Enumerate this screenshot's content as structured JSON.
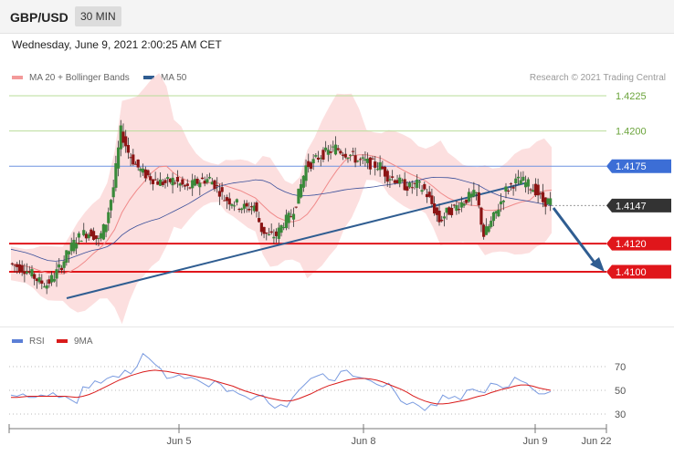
{
  "header": {
    "symbol": "GBP/USD",
    "timeframe": "30 MIN"
  },
  "timestamp": "Wednesday, June 9, 2021 2:00:25 AM CET",
  "credit": "Research © 2021 Trading Central",
  "legend": [
    {
      "label": "MA 20 + Bollinger Bands",
      "color": "#f39a9a"
    },
    {
      "label": "MA 50",
      "color": "#2f5d91"
    }
  ],
  "rsi_legend": [
    {
      "label": "RSI",
      "color": "#5b7fd6"
    },
    {
      "label": "9MA",
      "color": "#d91b1b"
    }
  ],
  "colors": {
    "resistance_green": "#8bc34a",
    "level_blue": "#3c6ed6",
    "support_red": "#e0161b",
    "current_dark": "#333333",
    "trend_navy": "#2f5d91"
  },
  "chart_data": [
    {
      "type": "line",
      "title": "",
      "ylim": [
        1.408,
        1.4235
      ],
      "x_ticks": [
        "Jun 5",
        "Jun 8",
        "Jun 9",
        "Jun 22"
      ],
      "levels": [
        {
          "value": 1.4225,
          "label": "1.4225",
          "kind": "resistance-green"
        },
        {
          "value": 1.42,
          "label": "1.4200",
          "kind": "resistance-green"
        },
        {
          "value": 1.4175,
          "label": "1.4175",
          "kind": "resistance-blue"
        },
        {
          "value": 1.4147,
          "label": "1.4147",
          "kind": "current"
        },
        {
          "value": 1.412,
          "label": "1.4120",
          "kind": "support-red"
        },
        {
          "value": 1.41,
          "label": "1.4100",
          "kind": "support-red"
        }
      ],
      "series": [
        {
          "name": "MA 20 + Bollinger Bands",
          "type": "line"
        },
        {
          "name": "MA 50",
          "type": "line"
        }
      ],
      "price_path": [
        1.4106,
        1.4104,
        1.4102,
        1.4098,
        1.4093,
        1.4091,
        1.4097,
        1.4105,
        1.4115,
        1.4123,
        1.4127,
        1.4128,
        1.4122,
        1.4135,
        1.416,
        1.42,
        1.4185,
        1.4176,
        1.417,
        1.4167,
        1.4164,
        1.4163,
        1.4165,
        1.4162,
        1.4159,
        1.4163,
        1.4165,
        1.4166,
        1.416,
        1.4152,
        1.415,
        1.4147,
        1.4145,
        1.4147,
        1.413,
        1.4125,
        1.4126,
        1.4135,
        1.414,
        1.4155,
        1.4175,
        1.4178,
        1.4183,
        1.4185,
        1.4188,
        1.4185,
        1.4183,
        1.4179,
        1.4178,
        1.4176,
        1.4175,
        1.4168,
        1.4166,
        1.4162,
        1.416,
        1.4162,
        1.4158,
        1.4148,
        1.4136,
        1.4142,
        1.4145,
        1.4149,
        1.4153,
        1.4155,
        1.4126,
        1.4135,
        1.4146,
        1.4158,
        1.4163,
        1.4165,
        1.4162,
        1.4158,
        1.415,
        1.415
      ],
      "trendlines": [
        {
          "from": [
            "start",
            1.4093
          ],
          "to": [
            "Jun 9",
            1.4164
          ],
          "label": ""
        }
      ],
      "forecast": {
        "from": 1.415,
        "to": 1.41,
        "label": ""
      }
    },
    {
      "type": "line",
      "title": "",
      "ylim": [
        20,
        80
      ],
      "y_ticks": [
        {
          "value": 70,
          "label": "70"
        },
        {
          "value": 50,
          "label": "50"
        },
        {
          "value": 30,
          "label": "30"
        }
      ],
      "series": [
        {
          "name": "RSI",
          "values": [
            46,
            45,
            47,
            44,
            44,
            46,
            45,
            48,
            44,
            45,
            42,
            39,
            53,
            52,
            58,
            56,
            60,
            62,
            61,
            67,
            64,
            70,
            81,
            77,
            72,
            68,
            60,
            61,
            63,
            60,
            61,
            59,
            56,
            53,
            58,
            55,
            49,
            50,
            47,
            45,
            42,
            45,
            46,
            39,
            35,
            38,
            36,
            44,
            50,
            55,
            60,
            62,
            64,
            59,
            58,
            66,
            67,
            62,
            61,
            60,
            58,
            55,
            53,
            56,
            49,
            41,
            38,
            40,
            37,
            33,
            38,
            37,
            46,
            43,
            45,
            42,
            50,
            51,
            49,
            48,
            56,
            55,
            52,
            53,
            61,
            58,
            56,
            51,
            47,
            47,
            49
          ]
        },
        {
          "name": "9MA",
          "values": [
            44,
            44,
            44.5,
            45,
            45,
            45,
            45,
            45,
            45,
            45,
            44.5,
            44,
            45,
            46.5,
            48.5,
            51,
            53.5,
            56,
            58.5,
            60.5,
            62.5,
            64,
            65.5,
            66.5,
            67,
            66.5,
            66,
            65,
            64,
            63.5,
            62.5,
            61.5,
            60.5,
            59.5,
            58,
            56.5,
            55,
            53.5,
            51.5,
            49.5,
            48,
            46.5,
            45,
            43.5,
            42.5,
            41.5,
            41,
            41.5,
            43,
            45,
            47,
            49.5,
            52,
            54,
            55.5,
            57,
            58.5,
            59.5,
            60,
            60,
            59.5,
            58.5,
            57,
            55,
            53,
            51,
            48.5,
            45.5,
            43,
            41,
            39.5,
            38.5,
            38.5,
            39,
            40,
            41,
            42,
            43.5,
            45,
            46,
            48,
            49.5,
            51,
            52,
            53.5,
            54.5,
            54.5,
            53.5,
            52,
            51,
            50
          ]
        }
      ]
    }
  ]
}
